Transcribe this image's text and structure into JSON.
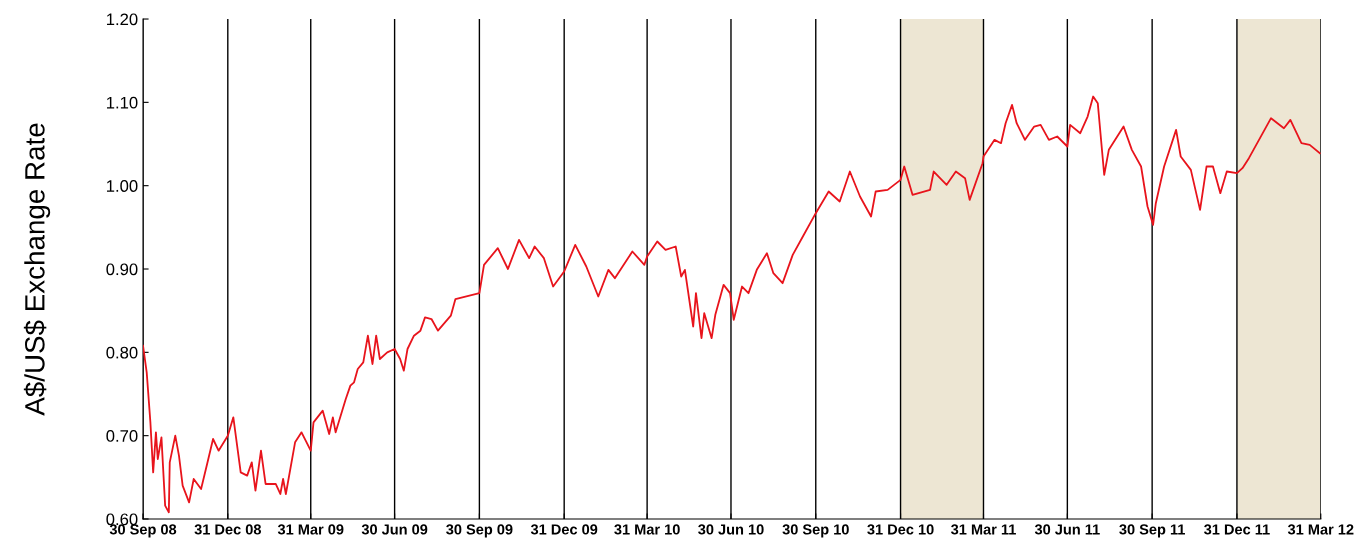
{
  "chart_data": {
    "type": "line",
    "ylabel": "A$/US$ Exchange Rate",
    "x": [
      "2008-09-30",
      "2008-10-04",
      "2008-10-08",
      "2008-10-11",
      "2008-10-14",
      "2008-10-16",
      "2008-10-20",
      "2008-10-24",
      "2008-10-28",
      "2008-10-29",
      "2008-11-04",
      "2008-11-08",
      "2008-11-12",
      "2008-11-19",
      "2008-11-24",
      "2008-12-02",
      "2008-12-09",
      "2008-12-15",
      "2008-12-21",
      "2008-12-31",
      "2009-01-06",
      "2009-01-14",
      "2009-01-21",
      "2009-01-26",
      "2009-01-30",
      "2009-02-05",
      "2009-02-10",
      "2009-02-21",
      "2009-02-26",
      "2009-03-01",
      "2009-03-04",
      "2009-03-14",
      "2009-03-21",
      "2009-03-31",
      "2009-04-03",
      "2009-04-13",
      "2009-04-20",
      "2009-04-24",
      "2009-04-27",
      "2009-05-08",
      "2009-05-13",
      "2009-05-17",
      "2009-05-21",
      "2009-05-27",
      "2009-06-01",
      "2009-06-06",
      "2009-06-10",
      "2009-06-14",
      "2009-06-22",
      "2009-06-30",
      "2009-07-06",
      "2009-07-10",
      "2009-07-14",
      "2009-07-21",
      "2009-07-28",
      "2009-08-02",
      "2009-08-09",
      "2009-08-16",
      "2009-08-30",
      "2009-09-04",
      "2009-09-30",
      "2009-10-05",
      "2009-10-20",
      "2009-10-31",
      "2009-11-12",
      "2009-11-23",
      "2009-11-29",
      "2009-12-09",
      "2009-12-19",
      "2009-12-31",
      "2010-01-12",
      "2010-01-24",
      "2010-02-06",
      "2010-02-17",
      "2010-02-24",
      "2010-03-15",
      "2010-03-28",
      "2010-03-31",
      "2010-04-11",
      "2010-04-20",
      "2010-05-01",
      "2010-05-07",
      "2010-05-11",
      "2010-05-20",
      "2010-05-23",
      "2010-05-29",
      "2010-06-01",
      "2010-06-09",
      "2010-06-13",
      "2010-06-22",
      "2010-06-29",
      "2010-07-03",
      "2010-07-12",
      "2010-07-19",
      "2010-07-28",
      "2010-08-08",
      "2010-08-15",
      "2010-08-25",
      "2010-09-05",
      "2010-09-16",
      "2010-09-30",
      "2010-10-14",
      "2010-10-26",
      "2010-11-06",
      "2010-11-17",
      "2010-11-29",
      "2010-12-04",
      "2010-12-17",
      "2010-12-31",
      "2011-01-04",
      "2011-01-13",
      "2011-02-01",
      "2011-02-05",
      "2011-02-19",
      "2011-03-01",
      "2011-03-11",
      "2011-03-16",
      "2011-03-30",
      "2011-03-31",
      "2011-04-12",
      "2011-04-19",
      "2011-04-24",
      "2011-05-01",
      "2011-05-06",
      "2011-05-15",
      "2011-05-25",
      "2011-06-01",
      "2011-06-10",
      "2011-06-19",
      "2011-06-30",
      "2011-07-03",
      "2011-07-14",
      "2011-07-22",
      "2011-07-28",
      "2011-08-02",
      "2011-08-09",
      "2011-08-14",
      "2011-08-30",
      "2011-09-08",
      "2011-09-18",
      "2011-09-25",
      "2011-10-01",
      "2011-10-04",
      "2011-10-13",
      "2011-10-26",
      "2011-10-31",
      "2011-11-11",
      "2011-11-21",
      "2011-11-28",
      "2011-12-05",
      "2011-12-13",
      "2011-12-20",
      "2011-12-31",
      "2012-01-06",
      "2012-01-13",
      "2012-01-31",
      "2012-02-06",
      "2012-02-20",
      "2012-02-27",
      "2012-03-10",
      "2012-03-19",
      "2012-03-30"
    ],
    "series": [
      {
        "color": "#e8141c",
        "values": [
          0.808,
          0.776,
          0.716,
          0.656,
          0.704,
          0.672,
          0.698,
          0.616,
          0.608,
          0.668,
          0.7,
          0.676,
          0.64,
          0.62,
          0.648,
          0.636,
          0.668,
          0.696,
          0.682,
          0.7,
          0.722,
          0.656,
          0.652,
          0.668,
          0.634,
          0.682,
          0.642,
          0.642,
          0.63,
          0.648,
          0.63,
          0.692,
          0.704,
          0.682,
          0.716,
          0.73,
          0.702,
          0.722,
          0.704,
          0.744,
          0.76,
          0.764,
          0.78,
          0.788,
          0.82,
          0.786,
          0.82,
          0.792,
          0.8,
          0.804,
          0.792,
          0.778,
          0.804,
          0.82,
          0.826,
          0.842,
          0.84,
          0.826,
          0.844,
          0.864,
          0.871,
          0.905,
          0.925,
          0.9,
          0.935,
          0.913,
          0.927,
          0.913,
          0.879,
          0.897,
          0.929,
          0.903,
          0.867,
          0.899,
          0.889,
          0.921,
          0.905,
          0.915,
          0.933,
          0.923,
          0.927,
          0.891,
          0.899,
          0.831,
          0.871,
          0.817,
          0.847,
          0.817,
          0.845,
          0.881,
          0.871,
          0.839,
          0.879,
          0.871,
          0.899,
          0.919,
          0.895,
          0.883,
          0.917,
          0.939,
          0.967,
          0.993,
          0.981,
          1.017,
          0.987,
          0.963,
          0.993,
          0.995,
          1.007,
          1.023,
          0.989,
          0.995,
          1.017,
          1.001,
          1.017,
          1.009,
          0.983,
          1.027,
          1.035,
          1.055,
          1.051,
          1.075,
          1.097,
          1.075,
          1.055,
          1.071,
          1.073,
          1.055,
          1.059,
          1.047,
          1.073,
          1.063,
          1.083,
          1.107,
          1.099,
          1.013,
          1.043,
          1.071,
          1.043,
          1.023,
          0.975,
          0.953,
          0.979,
          1.023,
          1.067,
          1.035,
          1.019,
          0.971,
          1.023,
          1.023,
          0.991,
          1.017,
          1.015,
          1.021,
          1.033,
          1.069,
          1.081,
          1.069,
          1.079,
          1.051,
          1.049,
          1.039
        ]
      }
    ],
    "xlim": [
      "2008-09-30",
      "2012-03-31"
    ],
    "xticks": [
      {
        "value": "2008-09-30",
        "label": "30 Sep 08"
      },
      {
        "value": "2008-12-31",
        "label": "31 Dec 08"
      },
      {
        "value": "2009-03-31",
        "label": "31 Mar 09"
      },
      {
        "value": "2009-06-30",
        "label": "30 Jun 09"
      },
      {
        "value": "2009-09-30",
        "label": "30 Sep 09"
      },
      {
        "value": "2009-12-31",
        "label": "31 Dec 09"
      },
      {
        "value": "2010-03-31",
        "label": "31 Mar 10"
      },
      {
        "value": "2010-06-30",
        "label": "30 Jun 10"
      },
      {
        "value": "2010-09-30",
        "label": "30 Sep 10"
      },
      {
        "value": "2010-12-31",
        "label": "31 Dec 10"
      },
      {
        "value": "2011-03-31",
        "label": "31 Mar 11"
      },
      {
        "value": "2011-06-30",
        "label": "30 Jun 11"
      },
      {
        "value": "2011-09-30",
        "label": "30 Sep 11"
      },
      {
        "value": "2011-12-31",
        "label": "31 Dec 11"
      },
      {
        "value": "2012-03-31",
        "label": "31 Mar 12"
      }
    ],
    "ylim": [
      0.6,
      1.2
    ],
    "yticks": [
      {
        "value": 0.6,
        "label": "0.60"
      },
      {
        "value": 0.7,
        "label": "0.70"
      },
      {
        "value": 0.8,
        "label": "0.80"
      },
      {
        "value": 0.9,
        "label": "0.90"
      },
      {
        "value": 1.0,
        "label": "1.00"
      },
      {
        "value": 1.1,
        "label": "1.10"
      },
      {
        "value": 1.2,
        "label": "1.20"
      }
    ],
    "bands": [
      {
        "axis": "x",
        "from": "2010-12-31",
        "to": "2011-03-31",
        "color": "#ede6d3"
      },
      {
        "axis": "x",
        "from": "2011-12-31",
        "to": "2012-03-31",
        "color": "#ede6d3"
      }
    ],
    "grid": "x"
  }
}
